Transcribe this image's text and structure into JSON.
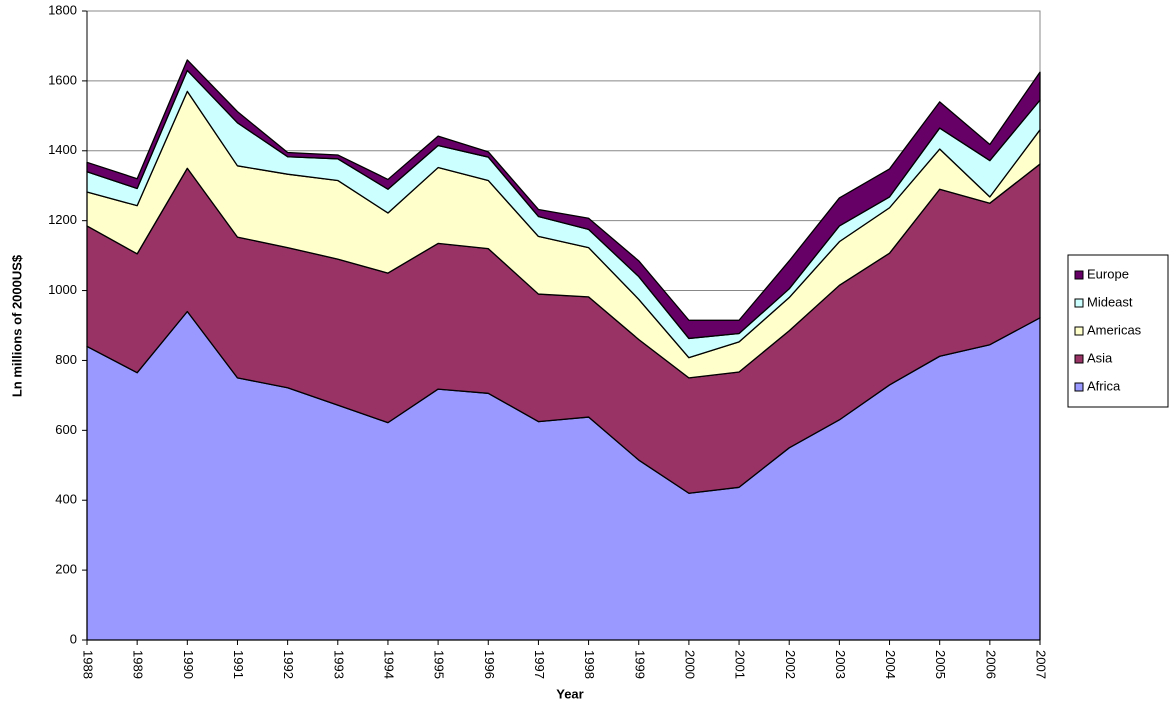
{
  "chart_data": {
    "type": "stacked-area",
    "x_label": "Year",
    "y_label": "Ln millions of 2000US$",
    "x": [
      1988,
      1989,
      1990,
      1991,
      1992,
      1993,
      1994,
      1995,
      1996,
      1997,
      1998,
      1999,
      2000,
      2001,
      2002,
      2003,
      2004,
      2005,
      2006,
      2007
    ],
    "xlim": [
      1988,
      2007
    ],
    "ylim": [
      0,
      1800
    ],
    "yticks": [
      0,
      200,
      400,
      600,
      800,
      1000,
      1200,
      1400,
      1600,
      1800
    ],
    "grid": true,
    "legend": "right",
    "series": [
      {
        "name": "Africa",
        "color": "#9999ff",
        "values": [
          840,
          765,
          940,
          750,
          722,
          672,
          622,
          718,
          706,
          625,
          638,
          515,
          420,
          437,
          550,
          630,
          730,
          812,
          845,
          922
        ]
      },
      {
        "name": "Asia",
        "color": "#993366",
        "values": [
          345,
          340,
          410,
          403,
          401,
          418,
          428,
          417,
          414,
          365,
          344,
          345,
          330,
          330,
          335,
          385,
          377,
          478,
          405,
          440
        ]
      },
      {
        "name": "Americas",
        "color": "#ffffcc",
        "values": [
          97,
          138,
          220,
          204,
          210,
          225,
          172,
          217,
          195,
          165,
          141,
          115,
          58,
          86,
          95,
          125,
          130,
          115,
          18,
          98
        ]
      },
      {
        "name": "Mideast",
        "color": "#ccffff",
        "values": [
          58,
          49,
          60,
          123,
          50,
          62,
          68,
          63,
          67,
          57,
          52,
          65,
          55,
          24,
          25,
          45,
          31,
          60,
          104,
          85
        ]
      },
      {
        "name": "Europe",
        "color": "#660066",
        "values": [
          27,
          28,
          30,
          32,
          12,
          11,
          28,
          27,
          15,
          20,
          32,
          45,
          52,
          38,
          80,
          80,
          80,
          75,
          46,
          80
        ]
      }
    ]
  }
}
